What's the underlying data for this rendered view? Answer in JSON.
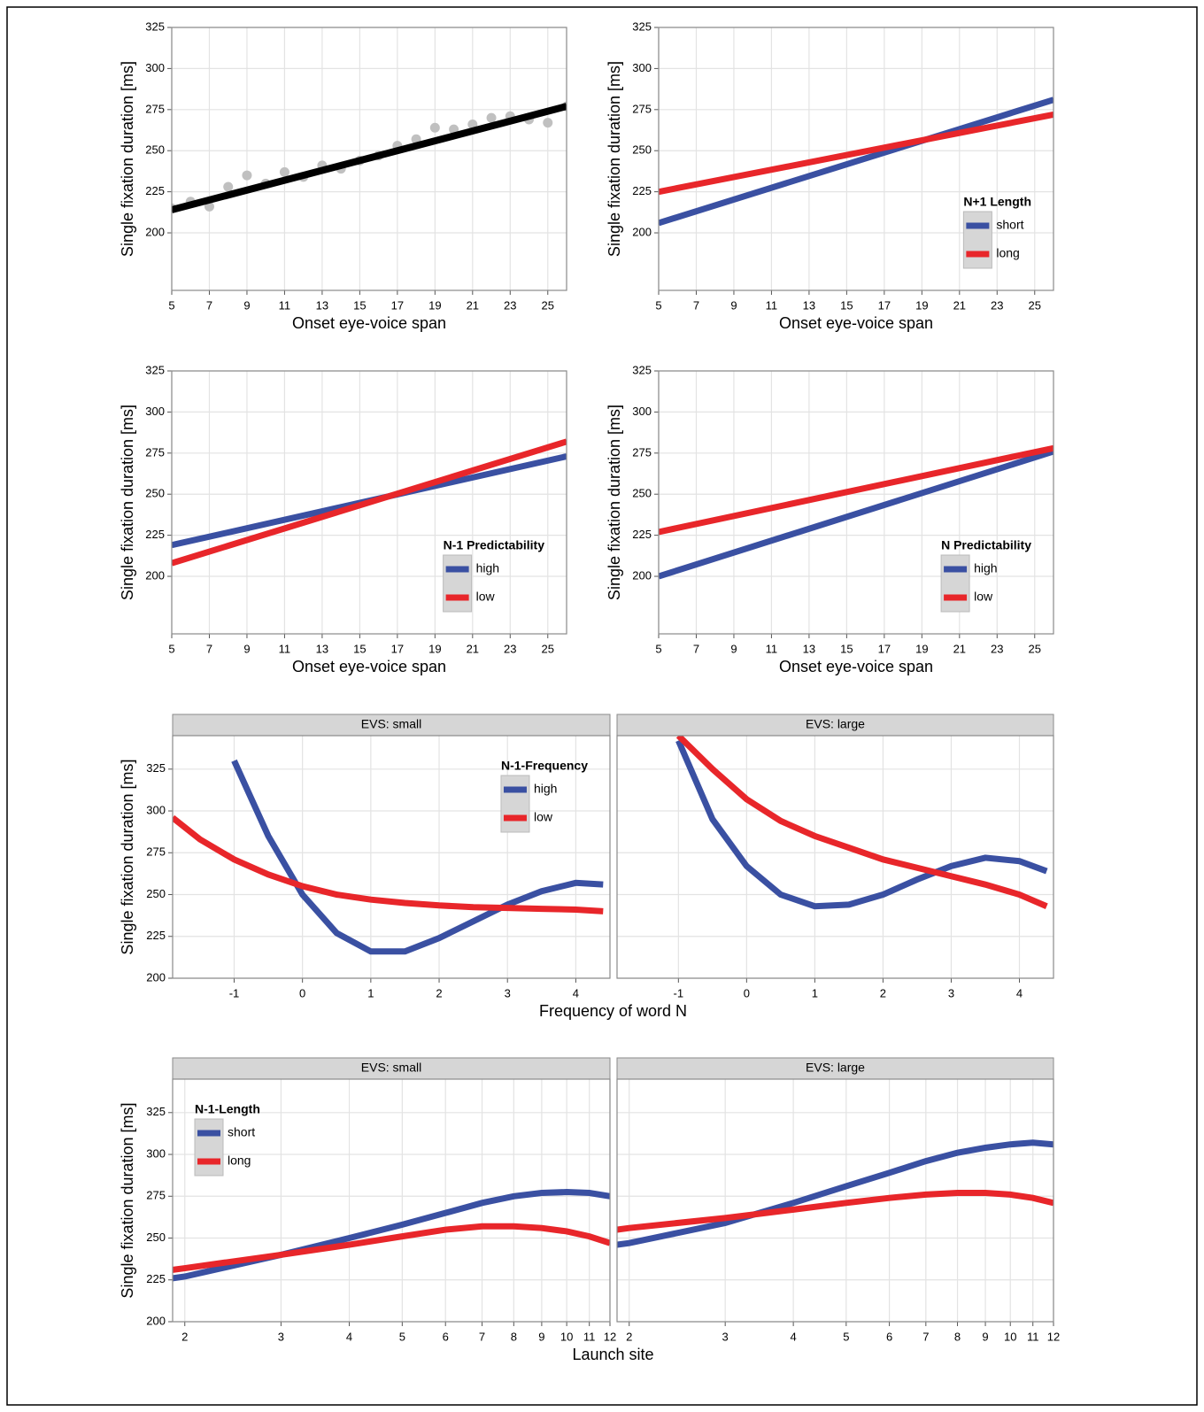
{
  "chart_data": [
    {
      "type": "scatter",
      "xlabel": "Onset eye-voice span",
      "ylabel": "Single fixation duration [ms]",
      "x": [
        5,
        6,
        7,
        8,
        9,
        10,
        11,
        12,
        13,
        14,
        15,
        16,
        17,
        18,
        19,
        20,
        21,
        22,
        23,
        24,
        25,
        26
      ],
      "values": [
        215,
        219,
        216,
        228,
        235,
        230,
        237,
        234,
        241,
        239,
        244,
        247,
        253,
        257,
        264,
        263,
        266,
        270,
        271,
        269,
        267,
        277
      ],
      "color": "#c0c0c0",
      "trend": {
        "x": [
          5,
          26
        ],
        "values": [
          214,
          277
        ],
        "color": "#000000"
      },
      "xlim": [
        5,
        26
      ],
      "xticks": [
        5,
        7,
        9,
        11,
        13,
        15,
        17,
        19,
        21,
        23,
        25
      ],
      "ylim": [
        165,
        325
      ],
      "yticks": [
        200,
        225,
        250,
        275,
        300,
        325
      ],
      "grid": true
    },
    {
      "type": "line",
      "xlabel": "Onset eye-voice span",
      "ylabel": "Single fixation duration [ms]",
      "legend_title": "N+1 Length",
      "legend": "bottom-right",
      "x": [
        5,
        26
      ],
      "series": [
        {
          "name": "short",
          "color": "#3a50a2",
          "values": [
            206,
            281
          ]
        },
        {
          "name": "long",
          "color": "#e8262a",
          "values": [
            225,
            272
          ]
        }
      ],
      "xlim": [
        5,
        26
      ],
      "xticks": [
        5,
        7,
        9,
        11,
        13,
        15,
        17,
        19,
        21,
        23,
        25
      ],
      "ylim": [
        165,
        325
      ],
      "yticks": [
        200,
        225,
        250,
        275,
        300,
        325
      ],
      "grid": true
    },
    {
      "type": "line",
      "xlabel": "Onset eye-voice span",
      "ylabel": "Single fixation duration [ms]",
      "legend_title": "N-1 Predictability",
      "legend": "bottom-right",
      "x": [
        5,
        26
      ],
      "series": [
        {
          "name": "high",
          "color": "#3a50a2",
          "values": [
            219,
            273
          ]
        },
        {
          "name": "low",
          "color": "#e8262a",
          "values": [
            208,
            282
          ]
        }
      ],
      "xlim": [
        5,
        26
      ],
      "xticks": [
        5,
        7,
        9,
        11,
        13,
        15,
        17,
        19,
        21,
        23,
        25
      ],
      "ylim": [
        165,
        325
      ],
      "yticks": [
        200,
        225,
        250,
        275,
        300,
        325
      ],
      "grid": true
    },
    {
      "type": "line",
      "xlabel": "Onset eye-voice span",
      "ylabel": "Single fixation duration [ms]",
      "legend_title": "N Predictability",
      "legend": "bottom-right",
      "x": [
        5,
        26
      ],
      "series": [
        {
          "name": "high",
          "color": "#3a50a2",
          "values": [
            200,
            276
          ]
        },
        {
          "name": "low",
          "color": "#e8262a",
          "values": [
            227,
            278
          ]
        }
      ],
      "xlim": [
        5,
        26
      ],
      "xticks": [
        5,
        7,
        9,
        11,
        13,
        15,
        17,
        19,
        21,
        23,
        25
      ],
      "ylim": [
        165,
        325
      ],
      "yticks": [
        200,
        225,
        250,
        275,
        300,
        325
      ],
      "grid": true
    },
    {
      "type": "line",
      "xlabel": "Frequency of word N",
      "ylabel": "Single fixation duration [ms]",
      "legend_title": "N-1-Frequency",
      "legend": "top-right",
      "series": [
        {
          "name": "high",
          "color": "#3a50a2"
        },
        {
          "name": "low",
          "color": "#e8262a"
        }
      ],
      "facets": [
        {
          "title": "EVS: small",
          "x": [
            -1.9,
            -1.5,
            -1,
            -0.5,
            0,
            0.5,
            1,
            1.5,
            2,
            2.5,
            3,
            3.5,
            4,
            4.4
          ],
          "values": [
            [
              null,
              null,
              330,
              285,
              250,
              227,
              216,
              216,
              224,
              234,
              244,
              252,
              257,
              256
            ],
            [
              296,
              283,
              271,
              262,
              255,
              250,
              247,
              245,
              243.5,
              242.5,
              242,
              241.5,
              241,
              240
            ]
          ]
        },
        {
          "title": "EVS: large",
          "x": [
            -1,
            -0.5,
            0,
            0.5,
            1,
            1.5,
            2,
            2.5,
            3,
            3.5,
            4,
            4.4
          ],
          "values": [
            [
              342,
              295,
              267,
              250,
              243,
              244,
              250,
              259,
              267,
              272,
              270,
              264
            ],
            [
              345,
              325,
              307,
              294,
              285,
              278,
              271,
              266,
              261,
              256,
              250,
              243
            ]
          ]
        }
      ],
      "xlim": [
        -1.9,
        4.5
      ],
      "xticks": [
        -1,
        0,
        1,
        2,
        3,
        4
      ],
      "ylim": [
        200,
        345
      ],
      "yticks": [
        200,
        225,
        250,
        275,
        300,
        325
      ],
      "grid": true
    },
    {
      "type": "line",
      "xlabel": "Launch site",
      "ylabel": "Single fixation duration [ms]",
      "legend_title": "N-1-Length",
      "legend": "top-left",
      "log_x": true,
      "series": [
        {
          "name": "short",
          "color": "#3a50a2"
        },
        {
          "name": "long",
          "color": "#e8262a"
        }
      ],
      "facets": [
        {
          "title": "EVS: small",
          "x": [
            1.9,
            2,
            3,
            4,
            5,
            6,
            7,
            8,
            9,
            10,
            11,
            12
          ],
          "values": [
            [
              226,
              227,
              240,
              250,
              258,
              265,
              271,
              275,
              277,
              277.5,
              277,
              275
            ],
            [
              231,
              232,
              240,
              246,
              251,
              255,
              257,
              257,
              256,
              254,
              251,
              247
            ]
          ]
        },
        {
          "title": "EVS: large",
          "x": [
            1.9,
            2,
            3,
            4,
            5,
            6,
            7,
            8,
            9,
            10,
            11,
            12
          ],
          "values": [
            [
              246,
              247,
              259,
              271,
              281,
              289,
              296,
              301,
              304,
              306,
              307,
              306
            ],
            [
              255,
              256,
              262,
              267,
              271,
              274,
              276,
              277,
              277,
              276,
              274,
              271
            ]
          ]
        }
      ],
      "xlim": [
        1.9,
        12
      ],
      "xticks": [
        2,
        3,
        4,
        5,
        6,
        7,
        8,
        9,
        10,
        11,
        12
      ],
      "ylim": [
        200,
        345
      ],
      "yticks": [
        200,
        225,
        250,
        275,
        300,
        325
      ],
      "grid": true
    }
  ]
}
